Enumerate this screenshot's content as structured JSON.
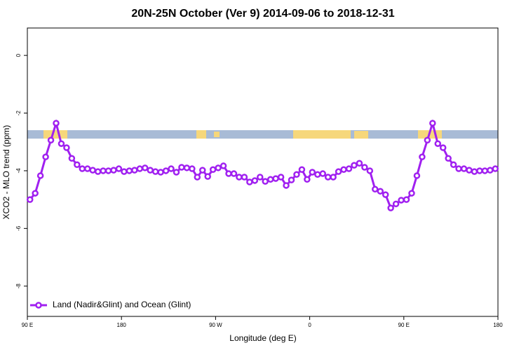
{
  "chart_data": {
    "type": "line",
    "title": "20N-25N October (Ver 9)   2014-09-06 to 2018-12-31",
    "xlabel": "Longitude (deg E)",
    "ylabel": "XCO2 - MLO trend (ppm)",
    "x": [
      92.5,
      97.5,
      102.5,
      107.5,
      112.5,
      117.5,
      122.5,
      127.5,
      132.5,
      137.5,
      142.5,
      147.5,
      152.5,
      157.5,
      162.5,
      167.5,
      172.5,
      177.5,
      182.5,
      187.5,
      192.5,
      197.5,
      202.5,
      207.5,
      212.5,
      217.5,
      222.5,
      227.5,
      232.5,
      237.5,
      242.5,
      247.5,
      252.5,
      257.5,
      262.5,
      267.5,
      272.5,
      277.5,
      282.5,
      287.5,
      292.5,
      297.5,
      302.5,
      307.5,
      312.5,
      317.5,
      322.5,
      327.5,
      332.5,
      337.5,
      342.5,
      347.5,
      352.5,
      357.5,
      362.5,
      367.5,
      372.5,
      377.5,
      382.5,
      387.5,
      392.5,
      397.5,
      402.5,
      407.5,
      412.5,
      417.5,
      422.5,
      427.5,
      432.5,
      437.5,
      442.5,
      447.5,
      452.5,
      457.5,
      462.5,
      467.5,
      472.5,
      477.5,
      482.5,
      487.5,
      492.5,
      497.5,
      502.5,
      507.5,
      512.5,
      517.5,
      522.5,
      527.5,
      532.5,
      537.5
    ],
    "series": [
      {
        "name": "Land (Nadir&Glint) and Ocean (Glint)",
        "color": "#a020f0",
        "values": [
          -5.0,
          -4.78,
          -4.17,
          -3.52,
          -2.94,
          -2.35,
          -3.06,
          -3.2,
          -3.57,
          -3.79,
          -3.93,
          -3.93,
          -3.98,
          -4.03,
          -4.0,
          -4.0,
          -3.98,
          -3.93,
          -4.03,
          -4.0,
          -3.98,
          -3.93,
          -3.9,
          -3.98,
          -4.03,
          -4.05,
          -4.0,
          -3.93,
          -4.05,
          -3.88,
          -3.9,
          -3.93,
          -4.22,
          -3.98,
          -4.2,
          -3.96,
          -3.9,
          -3.83,
          -4.1,
          -4.1,
          -4.22,
          -4.22,
          -4.39,
          -4.34,
          -4.22,
          -4.37,
          -4.3,
          -4.27,
          -4.22,
          -4.51,
          -4.32,
          -4.13,
          -3.96,
          -4.3,
          -4.05,
          -4.13,
          -4.1,
          -4.22,
          -4.22,
          -4.03,
          -3.96,
          -3.93,
          -3.81,
          -3.74,
          -3.88,
          -4.0,
          -4.64,
          -4.71,
          -4.83,
          -5.29,
          -5.15,
          -5.02,
          -5.0,
          -4.78,
          -4.17,
          -3.52,
          -2.94,
          -2.35,
          -3.06,
          -3.2,
          -3.57,
          -3.79,
          -3.93,
          -3.93,
          -3.98,
          -4.03,
          -4.0,
          -4.0,
          -3.98,
          -3.93
        ]
      }
    ],
    "xlim": [
      90,
      540
    ],
    "xticks": [
      {
        "value": 90,
        "label": "90 E"
      },
      {
        "value": 180,
        "label": "180"
      },
      {
        "value": 270,
        "label": "90 W"
      },
      {
        "value": 360,
        "label": "0"
      },
      {
        "value": 450,
        "label": "90 E"
      },
      {
        "value": 540,
        "label": "180"
      }
    ],
    "ylim": [
      -9.05,
      0.95
    ],
    "yticks": [
      0,
      -2,
      -4,
      -6,
      -8
    ],
    "legend": "bottom-left"
  }
}
